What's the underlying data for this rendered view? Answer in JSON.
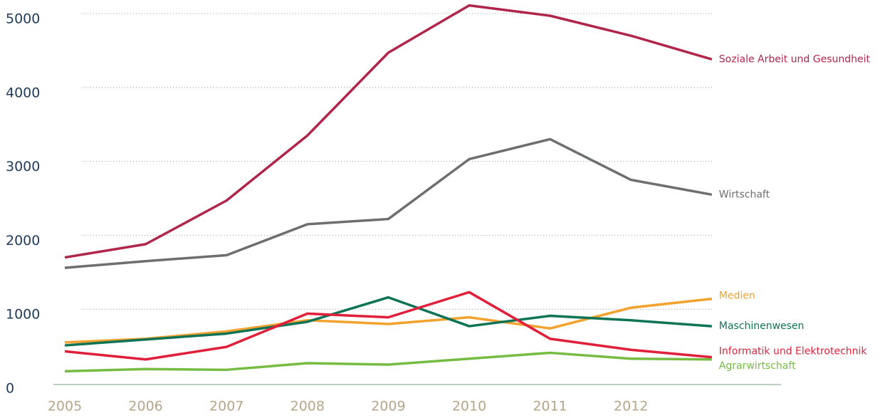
{
  "chart_data": {
    "type": "line",
    "categories": [
      "2005",
      "2006",
      "2007",
      "2008",
      "2009",
      "2010",
      "2011",
      "2012",
      null
    ],
    "series": [
      {
        "name": "Soziale Arbeit und Gesundheit",
        "color": "#b0264a",
        "values": [
          1700,
          1880,
          2470,
          3350,
          4470,
          5110,
          4970,
          4700,
          4380
        ]
      },
      {
        "name": "Wirtschaft",
        "color": "#6d6f6e",
        "values": [
          1560,
          1650,
          1730,
          2150,
          2220,
          3030,
          3300,
          2750,
          2550
        ]
      },
      {
        "name": "Medien",
        "color": "#f2a22e",
        "values": [
          550,
          600,
          700,
          850,
          800,
          890,
          740,
          1020,
          1140
        ]
      },
      {
        "name": "Maschinenwesen",
        "color": "#0f7355",
        "values": [
          510,
          590,
          670,
          830,
          1160,
          770,
          910,
          850,
          770
        ]
      },
      {
        "name": "Informatik und Elektrotechnik",
        "color": "#e0203a",
        "values": [
          430,
          320,
          490,
          940,
          890,
          1230,
          600,
          450,
          350
        ]
      },
      {
        "name": "Agrarwirtschaft",
        "color": "#76bc43",
        "values": [
          160,
          190,
          180,
          270,
          250,
          330,
          410,
          330,
          320
        ]
      }
    ],
    "ylim": [
      0,
      5000
    ],
    "yticks": [
      0,
      1000,
      2000,
      3000,
      4000,
      5000
    ],
    "grid": true
  }
}
